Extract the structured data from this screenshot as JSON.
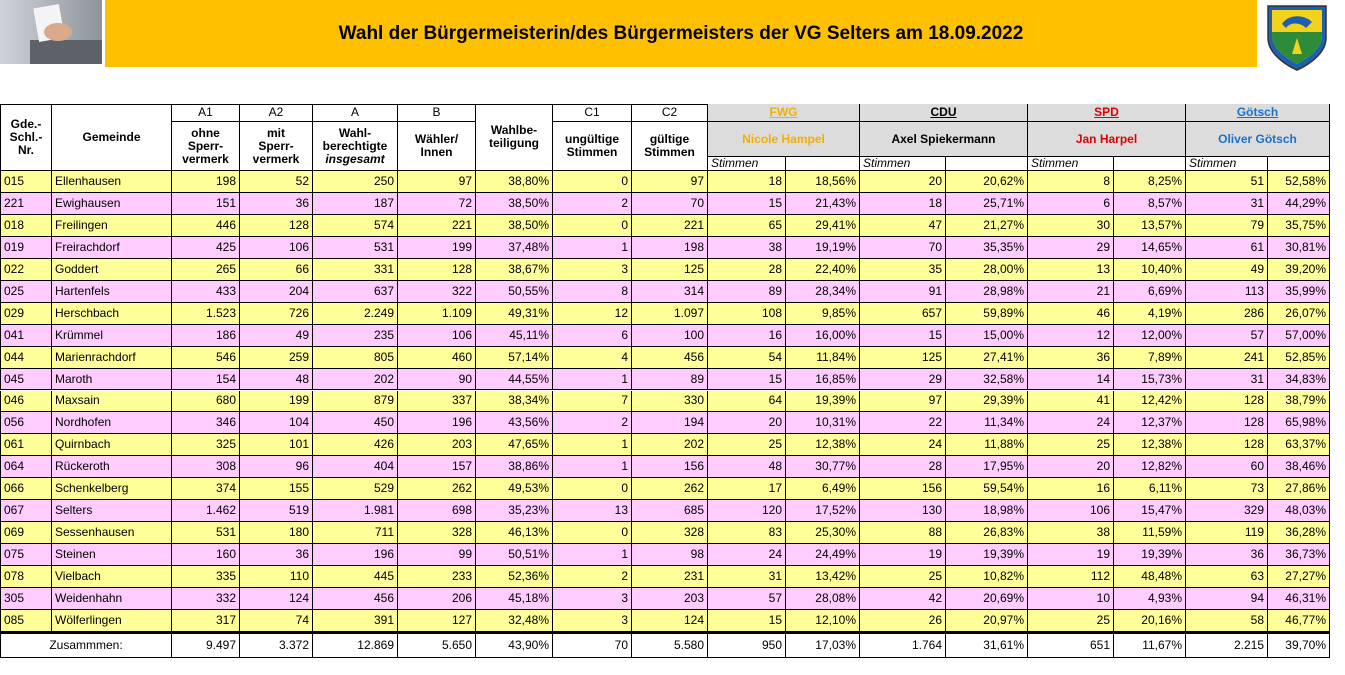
{
  "header": {
    "title": "Wahl der Bürgermeisterin/des Bürgermeisters der VG Selters am 18.09.2022"
  },
  "table": {
    "key_column": [
      "Gde.-",
      "Schl.-",
      "Nr."
    ],
    "name_column": "Gemeinde",
    "count_columns": [
      {
        "code": "A1",
        "label": [
          "ohne",
          "Sperr-",
          "vermerk"
        ]
      },
      {
        "code": "A2",
        "label": [
          "mit",
          "Sperr-",
          "vermerk"
        ]
      },
      {
        "code": "A",
        "label": [
          "Wahl-",
          "berechtigte"
        ],
        "note": "insgesamt"
      },
      {
        "code": "B",
        "label": [
          "Wähler/",
          "Innen"
        ]
      }
    ],
    "turnout_column": [
      "Wahlbe-",
      "teiligung"
    ],
    "vote_columns": [
      {
        "code": "C1",
        "label": [
          "ungültige",
          "Stimmen"
        ]
      },
      {
        "code": "C2",
        "label": [
          "gültige",
          "Stimmen"
        ]
      }
    ],
    "parties": [
      {
        "name": "FWG",
        "candidate": "Nicole Hampel",
        "color": "#f2b000",
        "sub": "Stimmen"
      },
      {
        "name": "CDU",
        "candidate": "Axel Spiekermann",
        "color": "#000000",
        "sub": "Stimmen"
      },
      {
        "name": "SPD",
        "candidate": "Jan Harpel",
        "color": "#e00000",
        "sub": "Stimmen"
      },
      {
        "name": "Götsch",
        "candidate": "Oliver Götsch",
        "color": "#1a72c8",
        "sub": "Stimmen"
      }
    ],
    "row_colors": [
      "#ffff99",
      "#ffccff"
    ],
    "rows": [
      [
        "015",
        "Ellenhausen",
        "198",
        "52",
        "250",
        "97",
        "38,80%",
        "0",
        "97",
        "18",
        "18,56%",
        "20",
        "20,62%",
        "8",
        "8,25%",
        "51",
        "52,58%"
      ],
      [
        "221",
        "Ewighausen",
        "151",
        "36",
        "187",
        "72",
        "38,50%",
        "2",
        "70",
        "15",
        "21,43%",
        "18",
        "25,71%",
        "6",
        "8,57%",
        "31",
        "44,29%"
      ],
      [
        "018",
        "Freilingen",
        "446",
        "128",
        "574",
        "221",
        "38,50%",
        "0",
        "221",
        "65",
        "29,41%",
        "47",
        "21,27%",
        "30",
        "13,57%",
        "79",
        "35,75%"
      ],
      [
        "019",
        "Freirachdorf",
        "425",
        "106",
        "531",
        "199",
        "37,48%",
        "1",
        "198",
        "38",
        "19,19%",
        "70",
        "35,35%",
        "29",
        "14,65%",
        "61",
        "30,81%"
      ],
      [
        "022",
        "Goddert",
        "265",
        "66",
        "331",
        "128",
        "38,67%",
        "3",
        "125",
        "28",
        "22,40%",
        "35",
        "28,00%",
        "13",
        "10,40%",
        "49",
        "39,20%"
      ],
      [
        "025",
        "Hartenfels",
        "433",
        "204",
        "637",
        "322",
        "50,55%",
        "8",
        "314",
        "89",
        "28,34%",
        "91",
        "28,98%",
        "21",
        "6,69%",
        "113",
        "35,99%"
      ],
      [
        "029",
        "Herschbach",
        "1.523",
        "726",
        "2.249",
        "1.109",
        "49,31%",
        "12",
        "1.097",
        "108",
        "9,85%",
        "657",
        "59,89%",
        "46",
        "4,19%",
        "286",
        "26,07%"
      ],
      [
        "041",
        "Krümmel",
        "186",
        "49",
        "235",
        "106",
        "45,11%",
        "6",
        "100",
        "16",
        "16,00%",
        "15",
        "15,00%",
        "12",
        "12,00%",
        "57",
        "57,00%"
      ],
      [
        "044",
        "Marienrachdorf",
        "546",
        "259",
        "805",
        "460",
        "57,14%",
        "4",
        "456",
        "54",
        "11,84%",
        "125",
        "27,41%",
        "36",
        "7,89%",
        "241",
        "52,85%"
      ],
      [
        "045",
        "Maroth",
        "154",
        "48",
        "202",
        "90",
        "44,55%",
        "1",
        "89",
        "15",
        "16,85%",
        "29",
        "32,58%",
        "14",
        "15,73%",
        "31",
        "34,83%"
      ],
      [
        "046",
        "Maxsain",
        "680",
        "199",
        "879",
        "337",
        "38,34%",
        "7",
        "330",
        "64",
        "19,39%",
        "97",
        "29,39%",
        "41",
        "12,42%",
        "128",
        "38,79%"
      ],
      [
        "056",
        "Nordhofen",
        "346",
        "104",
        "450",
        "196",
        "43,56%",
        "2",
        "194",
        "20",
        "10,31%",
        "22",
        "11,34%",
        "24",
        "12,37%",
        "128",
        "65,98%"
      ],
      [
        "061",
        "Quirnbach",
        "325",
        "101",
        "426",
        "203",
        "47,65%",
        "1",
        "202",
        "25",
        "12,38%",
        "24",
        "11,88%",
        "25",
        "12,38%",
        "128",
        "63,37%"
      ],
      [
        "064",
        "Rückeroth",
        "308",
        "96",
        "404",
        "157",
        "38,86%",
        "1",
        "156",
        "48",
        "30,77%",
        "28",
        "17,95%",
        "20",
        "12,82%",
        "60",
        "38,46%"
      ],
      [
        "066",
        "Schenkelberg",
        "374",
        "155",
        "529",
        "262",
        "49,53%",
        "0",
        "262",
        "17",
        "6,49%",
        "156",
        "59,54%",
        "16",
        "6,11%",
        "73",
        "27,86%"
      ],
      [
        "067",
        "Selters",
        "1.462",
        "519",
        "1.981",
        "698",
        "35,23%",
        "13",
        "685",
        "120",
        "17,52%",
        "130",
        "18,98%",
        "106",
        "15,47%",
        "329",
        "48,03%"
      ],
      [
        "069",
        "Sessenhausen",
        "531",
        "180",
        "711",
        "328",
        "46,13%",
        "0",
        "328",
        "83",
        "25,30%",
        "88",
        "26,83%",
        "38",
        "11,59%",
        "119",
        "36,28%"
      ],
      [
        "075",
        "Steinen",
        "160",
        "36",
        "196",
        "99",
        "50,51%",
        "1",
        "98",
        "24",
        "24,49%",
        "19",
        "19,39%",
        "19",
        "19,39%",
        "36",
        "36,73%"
      ],
      [
        "078",
        "Vielbach",
        "335",
        "110",
        "445",
        "233",
        "52,36%",
        "2",
        "231",
        "31",
        "13,42%",
        "25",
        "10,82%",
        "112",
        "48,48%",
        "63",
        "27,27%"
      ],
      [
        "305",
        "Weidenhahn",
        "332",
        "124",
        "456",
        "206",
        "45,18%",
        "3",
        "203",
        "57",
        "28,08%",
        "42",
        "20,69%",
        "10",
        "4,93%",
        "94",
        "46,31%"
      ],
      [
        "085",
        "Wölferlingen",
        "317",
        "74",
        "391",
        "127",
        "32,48%",
        "3",
        "124",
        "15",
        "12,10%",
        "26",
        "20,97%",
        "25",
        "20,16%",
        "58",
        "46,77%"
      ]
    ],
    "total": {
      "label": "Zusammmen:",
      "values": [
        "9.497",
        "3.372",
        "12.869",
        "5.650",
        "43,90%",
        "70",
        "5.580",
        "950",
        "17,03%",
        "1.764",
        "31,61%",
        "651",
        "11,67%",
        "2.215",
        "39,70%"
      ]
    }
  }
}
